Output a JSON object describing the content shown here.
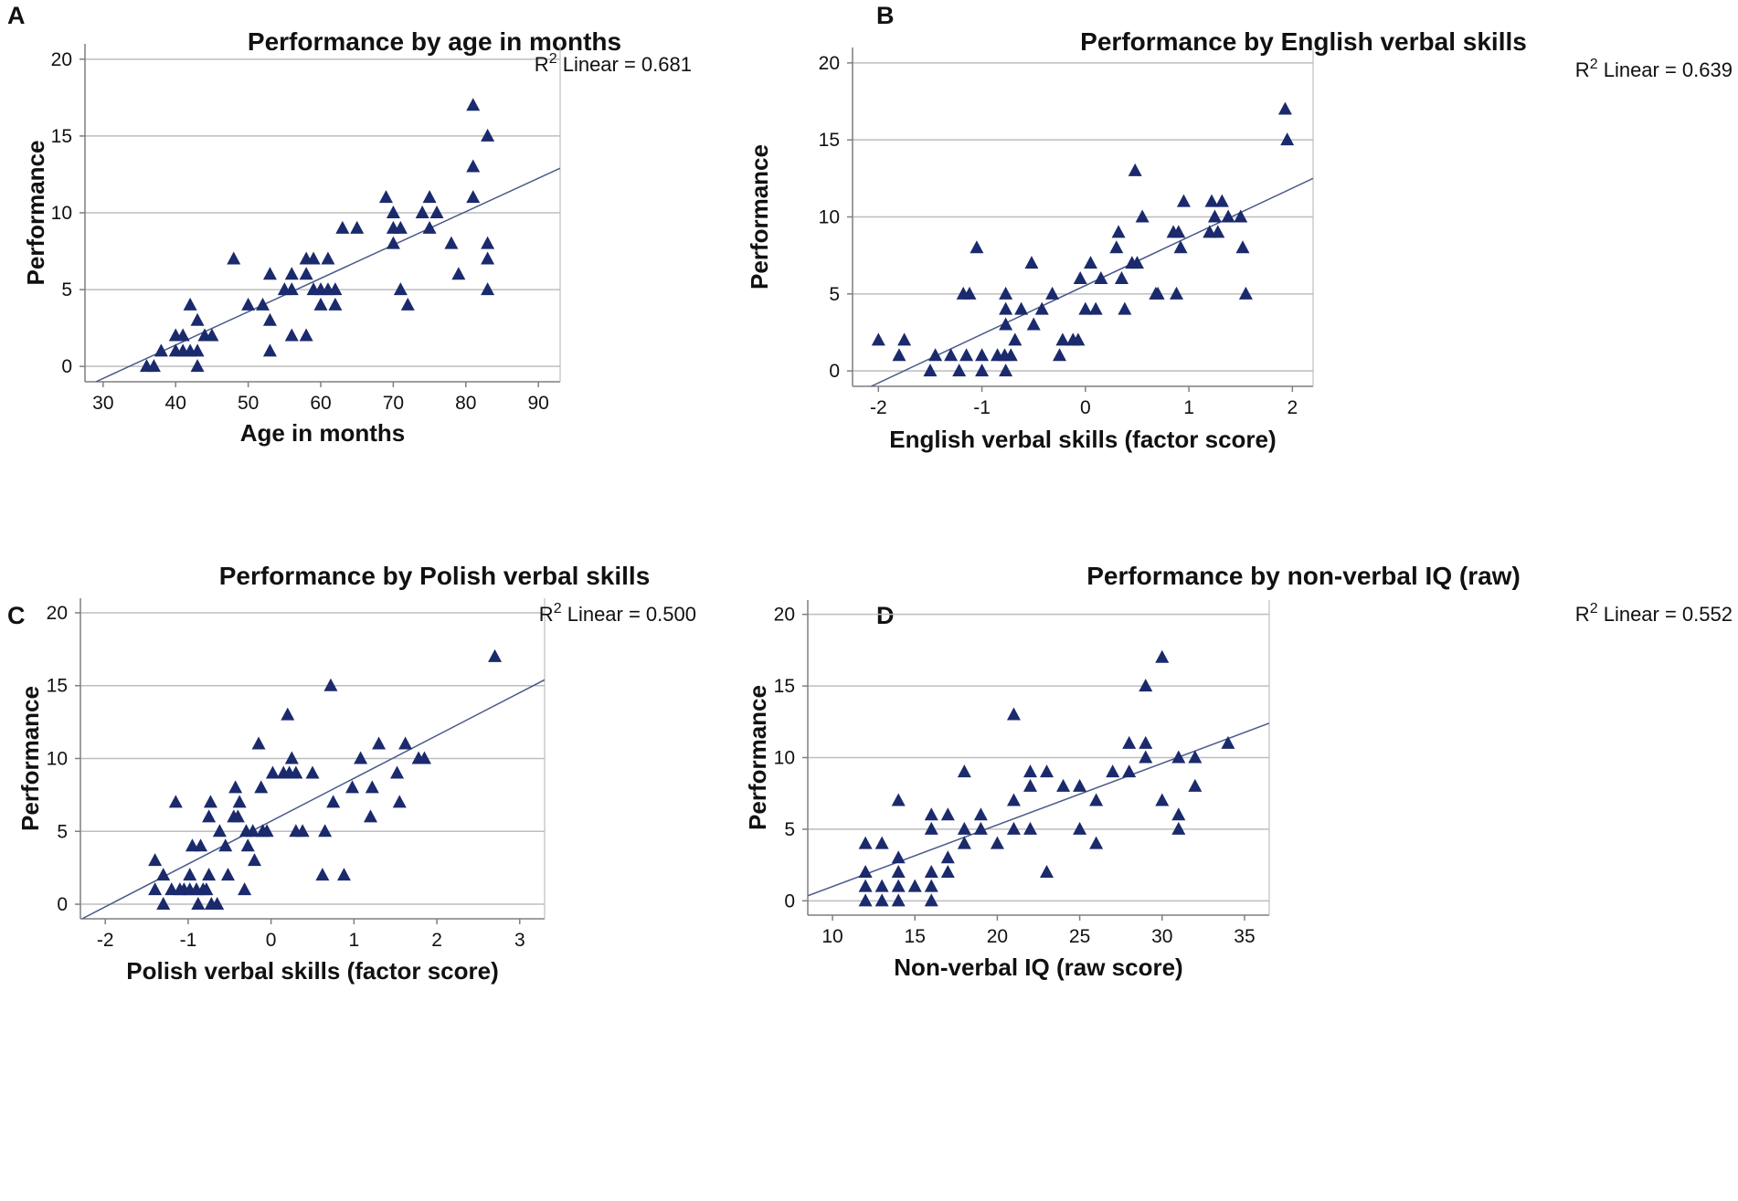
{
  "colors": {
    "marker": "#1a2a6c",
    "fit_line": "#4a5a8a",
    "grid": "#bdbdbd",
    "axis": "#7f7f7f"
  },
  "fit_label_prefix": "R",
  "fit_label_superscript": "2",
  "chart_data": [
    {
      "panel": "A",
      "type": "scatter",
      "title": "Performance by age in months",
      "xlabel": "Age in months",
      "ylabel": "Performance",
      "xlim": [
        27.5,
        93
      ],
      "ylim": [
        -1,
        21
      ],
      "xticks": [
        30,
        40,
        50,
        60,
        70,
        80,
        90
      ],
      "yticks": [
        0,
        5,
        10,
        15,
        20
      ],
      "fit_label": "Linear = 0.681",
      "fit_line": {
        "x": [
          29,
          93
        ],
        "y": [
          -1,
          12.9
        ]
      },
      "points": [
        [
          36,
          0
        ],
        [
          37,
          0
        ],
        [
          38,
          1
        ],
        [
          40,
          1
        ],
        [
          40,
          2
        ],
        [
          41,
          1
        ],
        [
          41,
          2
        ],
        [
          42,
          1
        ],
        [
          42,
          4
        ],
        [
          43,
          0
        ],
        [
          43,
          1
        ],
        [
          43,
          3
        ],
        [
          44,
          2
        ],
        [
          45,
          2
        ],
        [
          48,
          7
        ],
        [
          50,
          4
        ],
        [
          52,
          4
        ],
        [
          53,
          1
        ],
        [
          53,
          3
        ],
        [
          53,
          6
        ],
        [
          55,
          5
        ],
        [
          56,
          5
        ],
        [
          56,
          6
        ],
        [
          56,
          2
        ],
        [
          58,
          2
        ],
        [
          58,
          6
        ],
        [
          58,
          7
        ],
        [
          59,
          7
        ],
        [
          59,
          5
        ],
        [
          60,
          5
        ],
        [
          60,
          4
        ],
        [
          61,
          5
        ],
        [
          61,
          7
        ],
        [
          62,
          4
        ],
        [
          62,
          5
        ],
        [
          63,
          9
        ],
        [
          65,
          9
        ],
        [
          69,
          11
        ],
        [
          70,
          10
        ],
        [
          70,
          9
        ],
        [
          70,
          8
        ],
        [
          71,
          9
        ],
        [
          71,
          5
        ],
        [
          72,
          4
        ],
        [
          74,
          10
        ],
        [
          75,
          11
        ],
        [
          75,
          9
        ],
        [
          76,
          10
        ],
        [
          78,
          8
        ],
        [
          79,
          6
        ],
        [
          81,
          17
        ],
        [
          81,
          13
        ],
        [
          81,
          11
        ],
        [
          83,
          15
        ],
        [
          83,
          8
        ],
        [
          83,
          7
        ],
        [
          83,
          5
        ]
      ]
    },
    {
      "panel": "B",
      "type": "scatter",
      "title": "Performance by English verbal skills",
      "xlabel": "English verbal skills (factor score)",
      "ylabel": "Performance",
      "xlim": [
        -2.25,
        2.2
      ],
      "ylim": [
        -1,
        21
      ],
      "xticks": [
        -2,
        -1,
        0,
        1,
        2
      ],
      "yticks": [
        0,
        5,
        10,
        15,
        20
      ],
      "fit_label": "Linear = 0.639",
      "fit_line": {
        "x": [
          -2.07,
          2.2
        ],
        "y": [
          -1,
          12.5
        ]
      },
      "points": [
        [
          -2.0,
          2
        ],
        [
          -1.8,
          1
        ],
        [
          -1.75,
          2
        ],
        [
          -1.5,
          0
        ],
        [
          -1.45,
          1
        ],
        [
          -1.3,
          1
        ],
        [
          -1.22,
          0
        ],
        [
          -1.15,
          1
        ],
        [
          -1.18,
          5
        ],
        [
          -1.12,
          5
        ],
        [
          -1.05,
          8
        ],
        [
          -1.0,
          1
        ],
        [
          -1.0,
          0
        ],
        [
          -0.85,
          1
        ],
        [
          -0.78,
          1
        ],
        [
          -0.77,
          0
        ],
        [
          -0.77,
          3
        ],
        [
          -0.77,
          4
        ],
        [
          -0.77,
          5
        ],
        [
          -0.72,
          1
        ],
        [
          -0.68,
          2
        ],
        [
          -0.62,
          4
        ],
        [
          -0.52,
          7
        ],
        [
          -0.5,
          3
        ],
        [
          -0.42,
          4
        ],
        [
          -0.32,
          5
        ],
        [
          -0.25,
          1
        ],
        [
          -0.22,
          2
        ],
        [
          -0.12,
          2
        ],
        [
          -0.07,
          2
        ],
        [
          -0.05,
          6
        ],
        [
          0.0,
          4
        ],
        [
          0.05,
          7
        ],
        [
          0.1,
          4
        ],
        [
          0.15,
          6
        ],
        [
          0.3,
          8
        ],
        [
          0.32,
          9
        ],
        [
          0.35,
          6
        ],
        [
          0.38,
          4
        ],
        [
          0.45,
          7
        ],
        [
          0.48,
          13
        ],
        [
          0.5,
          7
        ],
        [
          0.55,
          10
        ],
        [
          0.68,
          5
        ],
        [
          0.7,
          5
        ],
        [
          0.85,
          9
        ],
        [
          0.88,
          5
        ],
        [
          0.9,
          9
        ],
        [
          0.92,
          8
        ],
        [
          0.95,
          11
        ],
        [
          1.2,
          9
        ],
        [
          1.22,
          11
        ],
        [
          1.25,
          10
        ],
        [
          1.28,
          9
        ],
        [
          1.32,
          11
        ],
        [
          1.38,
          10
        ],
        [
          1.5,
          10
        ],
        [
          1.52,
          8
        ],
        [
          1.55,
          5
        ],
        [
          1.93,
          17
        ],
        [
          1.95,
          15
        ]
      ]
    },
    {
      "panel": "C",
      "type": "scatter",
      "title": "Performance by Polish verbal skills",
      "xlabel": "Polish verbal skills (factor score)",
      "ylabel": "Performance",
      "xlim": [
        -2.3,
        3.3
      ],
      "ylim": [
        -1,
        21
      ],
      "xticks": [
        -2,
        -1,
        0,
        1,
        2,
        3
      ],
      "yticks": [
        0,
        5,
        10,
        15,
        20
      ],
      "fit_label": "Linear = 0.500",
      "fit_line": {
        "x": [
          -2.28,
          3.3
        ],
        "y": [
          -1,
          15.4
        ]
      },
      "points": [
        [
          -1.4,
          3
        ],
        [
          -1.4,
          1
        ],
        [
          -1.3,
          2
        ],
        [
          -1.3,
          0
        ],
        [
          -1.2,
          1
        ],
        [
          -1.15,
          7
        ],
        [
          -1.1,
          1
        ],
        [
          -1.05,
          1
        ],
        [
          -0.98,
          2
        ],
        [
          -0.98,
          1
        ],
        [
          -0.95,
          4
        ],
        [
          -0.9,
          1
        ],
        [
          -0.88,
          0
        ],
        [
          -0.85,
          4
        ],
        [
          -0.82,
          1
        ],
        [
          -0.78,
          1
        ],
        [
          -0.75,
          2
        ],
        [
          -0.75,
          6
        ],
        [
          -0.73,
          7
        ],
        [
          -0.72,
          0
        ],
        [
          -0.65,
          0
        ],
        [
          -0.62,
          5
        ],
        [
          -0.55,
          4
        ],
        [
          -0.52,
          2
        ],
        [
          -0.45,
          6
        ],
        [
          -0.43,
          8
        ],
        [
          -0.4,
          6
        ],
        [
          -0.38,
          7
        ],
        [
          -0.32,
          1
        ],
        [
          -0.3,
          5
        ],
        [
          -0.28,
          4
        ],
        [
          -0.22,
          5
        ],
        [
          -0.2,
          3
        ],
        [
          -0.15,
          11
        ],
        [
          -0.12,
          8
        ],
        [
          -0.1,
          5
        ],
        [
          -0.05,
          5
        ],
        [
          0.02,
          9
        ],
        [
          0.15,
          9
        ],
        [
          0.2,
          13
        ],
        [
          0.22,
          9
        ],
        [
          0.25,
          10
        ],
        [
          0.3,
          9
        ],
        [
          0.3,
          5
        ],
        [
          0.38,
          5
        ],
        [
          0.5,
          9
        ],
        [
          0.62,
          2
        ],
        [
          0.65,
          5
        ],
        [
          0.72,
          15
        ],
        [
          0.75,
          7
        ],
        [
          0.88,
          2
        ],
        [
          0.98,
          8
        ],
        [
          1.08,
          10
        ],
        [
          1.2,
          6
        ],
        [
          1.22,
          8
        ],
        [
          1.3,
          11
        ],
        [
          1.52,
          9
        ],
        [
          1.55,
          7
        ],
        [
          1.62,
          11
        ],
        [
          1.78,
          10
        ],
        [
          1.85,
          10
        ],
        [
          2.7,
          17
        ]
      ]
    },
    {
      "panel": "D",
      "type": "scatter",
      "title": "Performance by non-verbal IQ (raw)",
      "xlabel": "Non-verbal IQ (raw score)",
      "ylabel": "Performance",
      "xlim": [
        8.5,
        36.5
      ],
      "ylim": [
        -1,
        21
      ],
      "xticks": [
        10,
        15,
        20,
        25,
        30,
        35
      ],
      "yticks": [
        0,
        5,
        10,
        15,
        20
      ],
      "fit_label": "Linear = 0.552",
      "fit_line": {
        "x": [
          8.5,
          36.5
        ],
        "y": [
          0.35,
          12.4
        ]
      },
      "points": [
        [
          12,
          0
        ],
        [
          12,
          1
        ],
        [
          12,
          2
        ],
        [
          12,
          4
        ],
        [
          13,
          0
        ],
        [
          13,
          1
        ],
        [
          13,
          4
        ],
        [
          14,
          0
        ],
        [
          14,
          1
        ],
        [
          14,
          2
        ],
        [
          14,
          3
        ],
        [
          14,
          7
        ],
        [
          15,
          1
        ],
        [
          16,
          0
        ],
        [
          16,
          1
        ],
        [
          16,
          2
        ],
        [
          16,
          5
        ],
        [
          16,
          6
        ],
        [
          17,
          2
        ],
        [
          17,
          3
        ],
        [
          17,
          6
        ],
        [
          18,
          4
        ],
        [
          18,
          5
        ],
        [
          18,
          9
        ],
        [
          19,
          5
        ],
        [
          19,
          6
        ],
        [
          20,
          4
        ],
        [
          21,
          5
        ],
        [
          21,
          7
        ],
        [
          21,
          13
        ],
        [
          22,
          5
        ],
        [
          22,
          8
        ],
        [
          22,
          9
        ],
        [
          23,
          2
        ],
        [
          23,
          9
        ],
        [
          24,
          8
        ],
        [
          25,
          5
        ],
        [
          25,
          8
        ],
        [
          26,
          4
        ],
        [
          26,
          7
        ],
        [
          27,
          9
        ],
        [
          28,
          9
        ],
        [
          28,
          11
        ],
        [
          29,
          10
        ],
        [
          29,
          11
        ],
        [
          29,
          15
        ],
        [
          30,
          7
        ],
        [
          30,
          17
        ],
        [
          31,
          5
        ],
        [
          31,
          6
        ],
        [
          31,
          10
        ],
        [
          32,
          8
        ],
        [
          32,
          10
        ],
        [
          34,
          11
        ]
      ]
    }
  ]
}
